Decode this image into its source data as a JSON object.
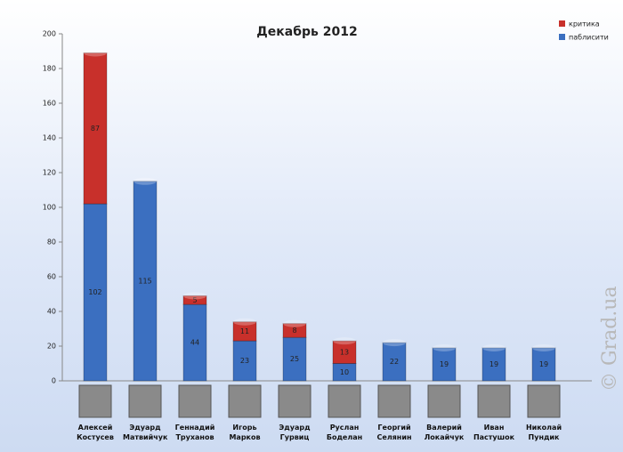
{
  "chart_data": {
    "type": "stacked_bar",
    "title": "Декабрь 2012",
    "categories": [
      "Алексей Костусев",
      "Эдуард Матвийчук",
      "Геннадий Труханов",
      "Игорь Марков",
      "Эдуард Гурвиц",
      "Руслан Боделан",
      "Георгий Селянин",
      "Валерий Локайчук",
      "Иван Пастушок",
      "Николай Пундик"
    ],
    "series": [
      {
        "name": "паблисити",
        "color": "#3b6fc0",
        "values": [
          102,
          115,
          44,
          23,
          25,
          10,
          22,
          19,
          19,
          19
        ]
      },
      {
        "name": "критика",
        "color": "#c8302b",
        "values": [
          87,
          null,
          5,
          11,
          8,
          13,
          null,
          null,
          null,
          null
        ]
      }
    ],
    "ylim": [
      0,
      200
    ],
    "yticks": [
      0,
      20,
      40,
      60,
      80,
      100,
      120,
      140,
      160,
      180,
      200
    ],
    "legend": "top-right",
    "watermark": "© Grad.ua"
  }
}
